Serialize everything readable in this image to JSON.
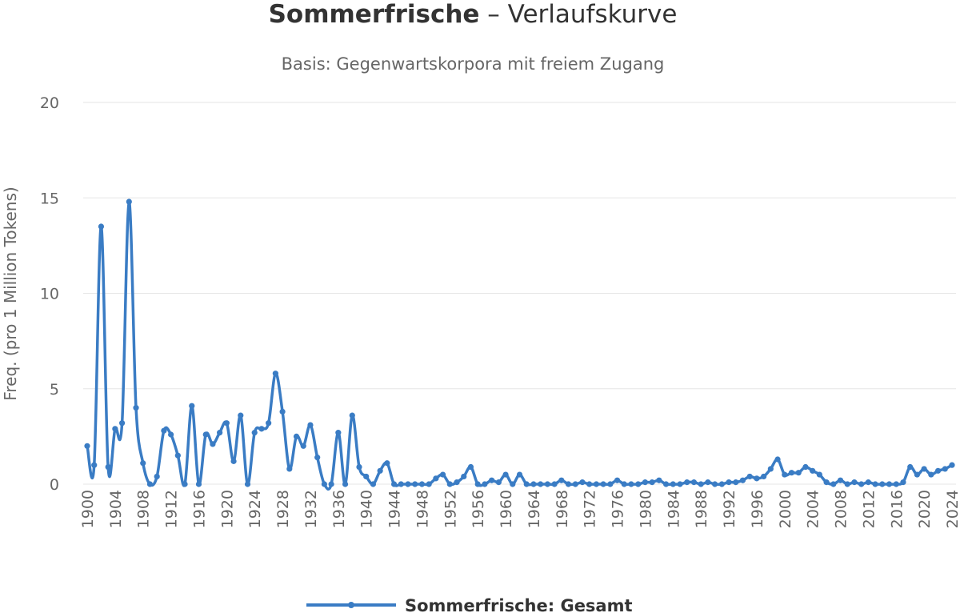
{
  "chart_data": {
    "type": "line",
    "title_term": "Sommerfrische",
    "title_rest": " – Verlaufskurve",
    "subtitle": "Basis: Gegenwartskorpora mit freiem Zugang",
    "ylabel": "Freq. (pro 1 Million Tokens)",
    "xlabel": "",
    "ylim": [
      0,
      20
    ],
    "yticks": [
      "0",
      "5",
      "10",
      "15",
      "20"
    ],
    "xlim": [
      1900,
      2024
    ],
    "xticks": [
      "1900",
      "1904",
      "1908",
      "1912",
      "1916",
      "1920",
      "1924",
      "1928",
      "1932",
      "1936",
      "1940",
      "1944",
      "1948",
      "1952",
      "1956",
      "1960",
      "1964",
      "1968",
      "1972",
      "1976",
      "1980",
      "1984",
      "1988",
      "1992",
      "1996",
      "2000",
      "2004",
      "2008",
      "2012",
      "2016",
      "2020",
      "2024"
    ],
    "grid": true,
    "legend_position": "bottom",
    "series": [
      {
        "name": "Sommerfrische: Gesamt",
        "color": "#3a7cc4",
        "x": [
          1900,
          1901,
          1902,
          1903,
          1904,
          1905,
          1906,
          1907,
          1908,
          1909,
          1910,
          1911,
          1912,
          1913,
          1914,
          1915,
          1916,
          1917,
          1918,
          1919,
          1920,
          1921,
          1922,
          1923,
          1924,
          1925,
          1926,
          1927,
          1928,
          1929,
          1930,
          1931,
          1932,
          1933,
          1934,
          1935,
          1936,
          1937,
          1938,
          1939,
          1940,
          1941,
          1942,
          1943,
          1944,
          1945,
          1946,
          1947,
          1948,
          1949,
          1950,
          1951,
          1952,
          1953,
          1954,
          1955,
          1956,
          1957,
          1958,
          1959,
          1960,
          1961,
          1962,
          1963,
          1964,
          1965,
          1966,
          1967,
          1968,
          1969,
          1970,
          1971,
          1972,
          1973,
          1974,
          1975,
          1976,
          1977,
          1978,
          1979,
          1980,
          1981,
          1982,
          1983,
          1984,
          1985,
          1986,
          1987,
          1988,
          1989,
          1990,
          1991,
          1992,
          1993,
          1994,
          1995,
          1996,
          1997,
          1998,
          1999,
          2000,
          2001,
          2002,
          2003,
          2004,
          2005,
          2006,
          2007,
          2008,
          2009,
          2010,
          2011,
          2012,
          2013,
          2014,
          2015,
          2016,
          2017,
          2018,
          2019,
          2020,
          2021,
          2022,
          2023,
          2024
        ],
        "y": [
          2.0,
          1.0,
          13.5,
          0.9,
          2.9,
          3.2,
          14.8,
          4.0,
          1.1,
          0.0,
          0.4,
          2.8,
          2.6,
          1.5,
          0.0,
          4.1,
          0.0,
          2.6,
          2.1,
          2.7,
          3.2,
          1.2,
          3.6,
          0.0,
          2.7,
          2.9,
          3.2,
          5.8,
          3.8,
          0.8,
          2.5,
          2.0,
          3.1,
          1.4,
          0.0,
          0.0,
          2.7,
          0.0,
          3.6,
          0.9,
          0.4,
          0.0,
          0.7,
          1.1,
          0.0,
          0.0,
          0.0,
          0.0,
          0.0,
          0.0,
          0.3,
          0.5,
          0.0,
          0.1,
          0.4,
          0.9,
          0.0,
          0.0,
          0.2,
          0.1,
          0.5,
          0.0,
          0.5,
          0.0,
          0.0,
          0.0,
          0.0,
          0.0,
          0.2,
          0.0,
          0.0,
          0.1,
          0.0,
          0.0,
          0.0,
          0.0,
          0.2,
          0.0,
          0.0,
          0.0,
          0.1,
          0.1,
          0.2,
          0.0,
          0.0,
          0.0,
          0.1,
          0.1,
          0.0,
          0.1,
          0.0,
          0.0,
          0.1,
          0.1,
          0.2,
          0.4,
          0.3,
          0.4,
          0.8,
          1.3,
          0.5,
          0.6,
          0.6,
          0.9,
          0.7,
          0.5,
          0.1,
          0.0,
          0.2,
          0.0,
          0.1,
          0.0,
          0.1,
          0.0,
          0.0,
          0.0,
          0.0,
          0.1,
          0.9,
          0.5,
          0.8,
          0.5,
          0.7,
          0.8,
          1.0
        ]
      }
    ]
  }
}
